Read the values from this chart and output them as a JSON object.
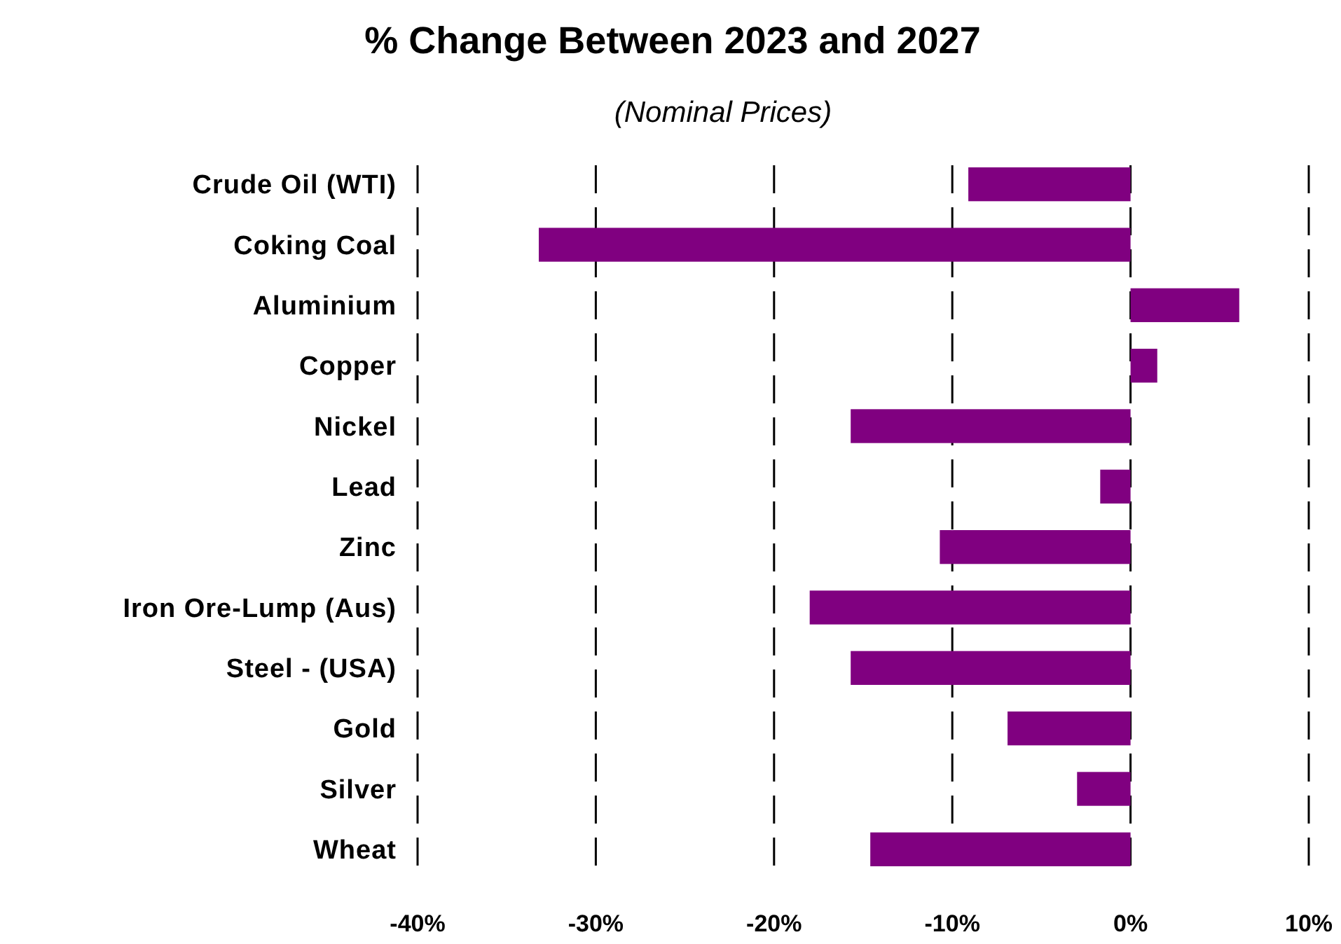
{
  "chart_data": {
    "type": "bar",
    "orientation": "horizontal",
    "title": "% Change Between 2023 and 2027",
    "subtitle": "(Nominal Prices)",
    "categories": [
      "Crude Oil (WTI)",
      "Coking Coal",
      "Aluminium",
      "Copper",
      "Nickel",
      "Lead",
      "Zinc",
      "Iron Ore-Lump (Aus)",
      "Steel - (USA)",
      "Gold",
      "Silver",
      "Wheat"
    ],
    "values": [
      -9.1,
      -33.2,
      6.1,
      1.5,
      -15.7,
      -1.7,
      -10.7,
      -18.0,
      -15.7,
      -6.9,
      -3.0,
      -14.6
    ],
    "color": "#800080",
    "xlim": [
      -40,
      10
    ],
    "xticks": [
      {
        "value": -40,
        "label": "-40%"
      },
      {
        "value": -30,
        "label": "-30%"
      },
      {
        "value": -20,
        "label": "-20%"
      },
      {
        "value": -10,
        "label": "-10%"
      },
      {
        "value": 0,
        "label": "0%"
      },
      {
        "value": 10,
        "label": "10%"
      }
    ],
    "grid": "x"
  }
}
